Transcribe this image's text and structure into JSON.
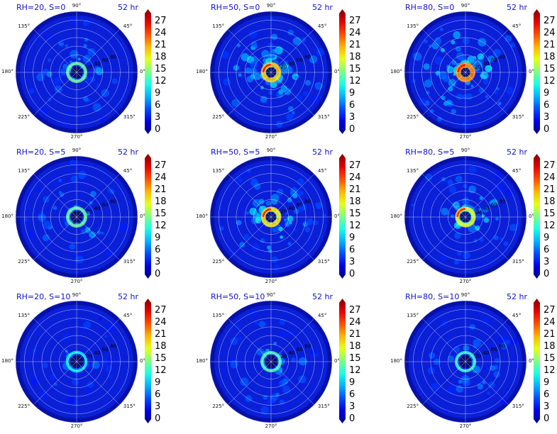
{
  "panels": [
    {
      "title": "RH=20, S=0",
      "time": "52 hr",
      "ring_labels": [
        "20",
        "40",
        "60",
        "80"
      ],
      "intensity": 0.35
    },
    {
      "title": "RH=50, S=0",
      "time": "52 hr",
      "ring_labels": [
        "20",
        "40",
        "60",
        "80"
      ],
      "intensity": 0.75
    },
    {
      "title": "RH=80, S=0",
      "time": "52 hr",
      "ring_labels": [
        "20",
        "40",
        "60",
        "80"
      ],
      "intensity": 0.9
    },
    {
      "title": "RH=20, S=5",
      "time": "52 hr",
      "ring_labels": [
        "20",
        "40",
        "60",
        "80"
      ],
      "intensity": 0.35
    },
    {
      "title": "RH=50, S=5",
      "time": "52 hr",
      "ring_labels": [
        "20",
        "40",
        "60",
        "80"
      ],
      "intensity": 0.7
    },
    {
      "title": "RH=80, S=5",
      "time": "52 hr",
      "ring_labels": [
        "20",
        "40",
        "60",
        "80"
      ],
      "intensity": 0.6
    },
    {
      "title": "RH=20, S=10",
      "time": "52 hr",
      "ring_labels": [
        "20",
        "40",
        "60",
        "80"
      ],
      "intensity": 0.15
    },
    {
      "title": "RH=50, S=10",
      "time": "52 hr",
      "ring_labels": [
        "20",
        "40",
        "60",
        "80"
      ],
      "intensity": 0.3
    },
    {
      "title": "RH=80, S=10",
      "time": "52 hr",
      "ring_labels": [
        "20",
        "40",
        "60",
        "80"
      ],
      "intensity": 0.25
    }
  ],
  "angle_labels": [
    "90°",
    "45°",
    "0°",
    "315°",
    "270°",
    "225°",
    "180°",
    "135°"
  ],
  "colorbar": {
    "ticks": [
      "27",
      "24",
      "21",
      "18",
      "15",
      "12",
      "9",
      "6",
      "3",
      "0"
    ],
    "min": 0,
    "max": 29,
    "colormap": "jet"
  },
  "chart_data": {
    "type": "heatmap",
    "projection": "polar",
    "panel_titles": [
      "RH=20, S=0",
      "RH=50, S=0",
      "RH=80, S=0",
      "RH=20, S=5",
      "RH=50, S=5",
      "RH=80, S=5",
      "RH=20, S=10",
      "RH=50, S=10",
      "RH=80, S=10"
    ],
    "time": "52 hr",
    "theta_ticks_deg": [
      0,
      45,
      90,
      135,
      180,
      225,
      270,
      315
    ],
    "r_ticks": [
      20,
      40,
      60,
      80
    ],
    "colorbar_range": [
      0,
      29
    ],
    "colorbar_ticks": [
      0,
      3,
      6,
      9,
      12,
      15,
      18,
      21,
      24,
      27
    ]
  }
}
